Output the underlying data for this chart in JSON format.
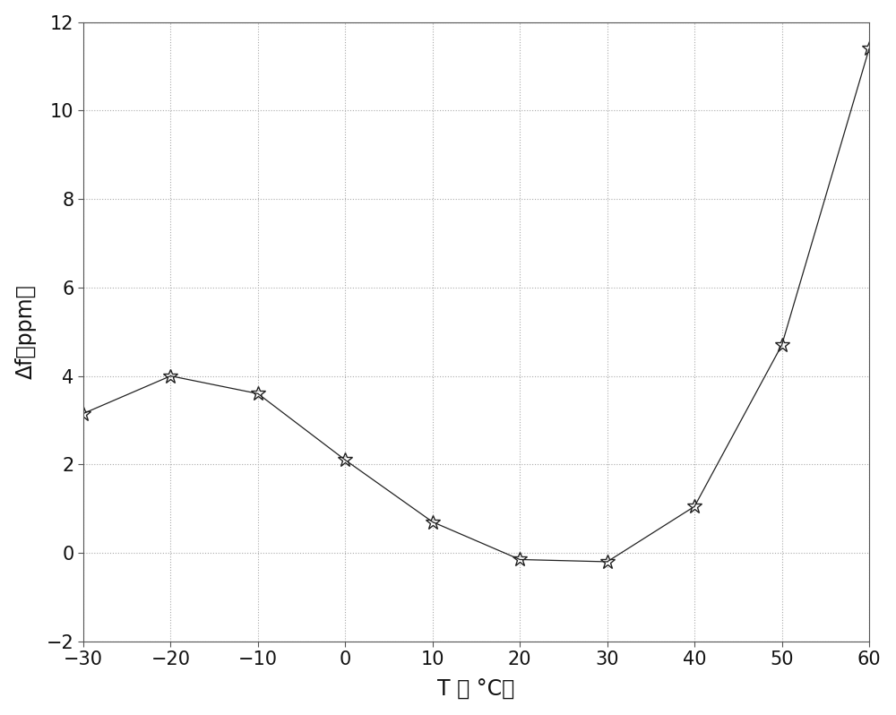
{
  "x": [
    -30,
    -20,
    -10,
    0,
    10,
    20,
    30,
    40,
    50,
    60
  ],
  "y": [
    3.15,
    4.0,
    3.6,
    2.1,
    0.7,
    -0.15,
    -0.2,
    1.05,
    4.7,
    11.4
  ],
  "xlabel": "T （ °C）",
  "ylabel": "Δf（ppm）",
  "xlim": [
    -30,
    60
  ],
  "ylim": [
    -2,
    12
  ],
  "xticks": [
    -30,
    -20,
    -10,
    0,
    10,
    20,
    30,
    40,
    50,
    60
  ],
  "yticks": [
    -2,
    0,
    2,
    4,
    6,
    8,
    10,
    12
  ],
  "line_color": "#222222",
  "marker": "*",
  "marker_size": 12,
  "line_width": 0.9,
  "background_color": "#ffffff",
  "xlabel_fontsize": 17,
  "ylabel_fontsize": 17,
  "tick_fontsize": 15,
  "grid_color": "#aaaaaa",
  "grid_linestyle": ":",
  "grid_linewidth": 0.8,
  "figsize": [
    10.0,
    7.98
  ]
}
